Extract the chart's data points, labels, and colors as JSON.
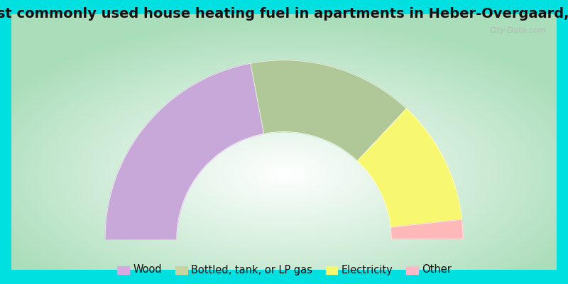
{
  "title": "Most commonly used house heating fuel in apartments in Heber-Overgaard, AZ",
  "segments": [
    {
      "label": "Wood",
      "value": 44.0,
      "color": "#c8a8d8"
    },
    {
      "label": "Bottled, tank, or LP gas",
      "value": 30.0,
      "color": "#b0c898"
    },
    {
      "label": "Electricity",
      "value": 22.5,
      "color": "#f8f870"
    },
    {
      "label": "Other",
      "value": 3.5,
      "color": "#ffb8b8"
    }
  ],
  "legend_marker_colors": [
    "#d8a8e0",
    "#c8d4a0",
    "#f8f870",
    "#ffb8c8"
  ],
  "cyan_bg": "#00e0e0",
  "chart_bg_center": "#ffffff",
  "chart_bg_edge": "#a8d8b8",
  "title_fontsize": 14,
  "legend_fontsize": 10.5,
  "watermark": "City-Data.com"
}
